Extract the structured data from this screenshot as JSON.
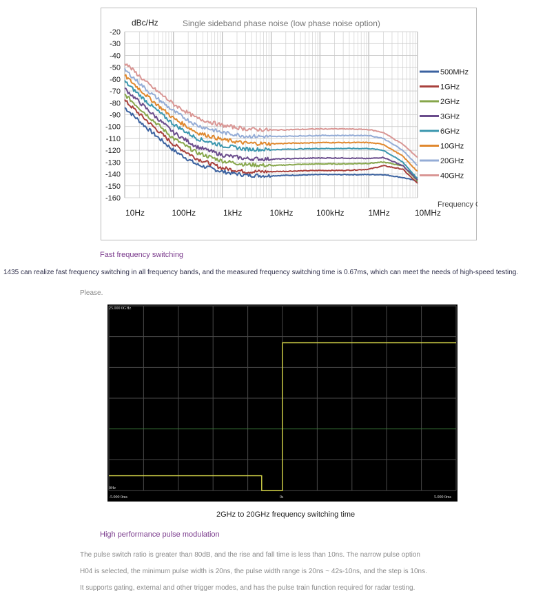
{
  "phase_noise_chart": {
    "chart_data": {
      "type": "line",
      "title": "Single sideband phase noise (low phase noise option)",
      "ylabel": "dBc/Hz",
      "xlabel": "Frequency Offset",
      "x_scale": "log",
      "xlim": [
        10,
        10000000
      ],
      "ylim": [
        -160,
        -20
      ],
      "y_ticks": [
        -20,
        -30,
        -40,
        -50,
        -60,
        -70,
        -80,
        -90,
        -100,
        -110,
        -120,
        -130,
        -140,
        -150,
        -160
      ],
      "y_tick_labels": [
        "-20",
        "-30",
        "-40",
        "-50",
        "-60",
        "-70",
        "-80",
        "-90",
        "-100",
        "-110",
        "-120",
        "-130",
        "-140",
        "-150",
        "-160"
      ],
      "x_ticks": [
        10,
        100,
        1000,
        10000,
        100000,
        1000000,
        10000000
      ],
      "x_tick_labels": [
        "10Hz",
        "100Hz",
        "1kHz",
        "10kHz",
        "100kHz",
        "1MHz",
        "10MHz"
      ],
      "x": [
        10,
        30,
        100,
        300,
        1000,
        3000,
        10000,
        30000,
        100000,
        300000,
        1000000,
        2000000,
        5000000,
        10000000
      ],
      "series": [
        {
          "name": "500MHz",
          "color": "#3b62a0",
          "values": [
            -84,
            -102,
            -120,
            -132,
            -138,
            -141,
            -141.5,
            -141,
            -140.5,
            -140.5,
            -140.5,
            -140.5,
            -143,
            -146
          ]
        },
        {
          "name": "1GHz",
          "color": "#a8403c",
          "values": [
            -78,
            -96,
            -115,
            -127,
            -135,
            -138,
            -138,
            -137.5,
            -137,
            -137,
            -136,
            -133,
            -136,
            -148
          ]
        },
        {
          "name": "2GHz",
          "color": "#86a64a",
          "values": [
            -73,
            -91,
            -110,
            -122,
            -129,
            -132,
            -133,
            -132,
            -131.5,
            -131.5,
            -131,
            -130,
            -133,
            -146
          ]
        },
        {
          "name": "3GHz",
          "color": "#6a4c8c",
          "values": [
            -68,
            -86,
            -105,
            -117,
            -124,
            -127,
            -127.5,
            -127,
            -126.5,
            -126.5,
            -127,
            -126,
            -133,
            -145
          ]
        },
        {
          "name": "6GHz",
          "color": "#3a96ae",
          "values": [
            -62,
            -80,
            -98,
            -110,
            -116,
            -119,
            -119.5,
            -119,
            -118.5,
            -118.5,
            -118.5,
            -120,
            -130,
            -144
          ]
        },
        {
          "name": "10GHz",
          "color": "#e0882e",
          "values": [
            -57,
            -75,
            -93,
            -105,
            -111,
            -114,
            -114.5,
            -114,
            -113.5,
            -113.5,
            -113.5,
            -115,
            -125,
            -138
          ]
        },
        {
          "name": "20GHz",
          "color": "#94acd6",
          "values": [
            -52,
            -70,
            -87,
            -99,
            -105,
            -108,
            -108.5,
            -108,
            -107.5,
            -107.5,
            -107.5,
            -110,
            -120,
            -133
          ]
        },
        {
          "name": "40GHz",
          "color": "#d99694",
          "values": [
            -46,
            -64,
            -81,
            -93,
            -99,
            -102,
            -103,
            -102.5,
            -102,
            -102,
            -102.5,
            -105,
            -115,
            -126
          ]
        }
      ]
    }
  },
  "fast_switching": {
    "heading": "Fast frequency switching",
    "description": "1435 can realize fast frequency switching in all frequency bands, and the measured frequency switching time is 0.67ms, which can meet the needs of high-speed testing.",
    "please": "Please."
  },
  "switching_chart": {
    "chart_data": {
      "type": "line",
      "title": "",
      "y_top_label": "25.000 0GHz",
      "y_bottom_label": "0Hz",
      "x_labels": [
        "-5.000 0ms",
        "0s",
        "5.000 0ms"
      ],
      "xlim": [
        -5,
        5
      ],
      "ylim": [
        0,
        25
      ],
      "series": [
        {
          "name": "frequency",
          "color": "#d8d84a",
          "x": [
            -5,
            -0.6,
            -0.6,
            0,
            0,
            5
          ],
          "values": [
            2,
            2,
            0,
            0,
            20,
            20
          ]
        }
      ]
    },
    "caption": "2GHz to 20GHz frequency switching time"
  },
  "pulse_modulation": {
    "heading": "High performance pulse modulation",
    "paragraphs": [
      "The pulse switch ratio is greater than 80dB, and the rise and fall time is less than 10ns. The narrow pulse option",
      "H04 is selected, the minimum pulse width is 20ns, the pulse width range is 20ns ~ 42s-10ns, and the step is 10ns.",
      "It supports gating, external and other trigger modes, and has the pulse train function required for radar testing."
    ]
  }
}
